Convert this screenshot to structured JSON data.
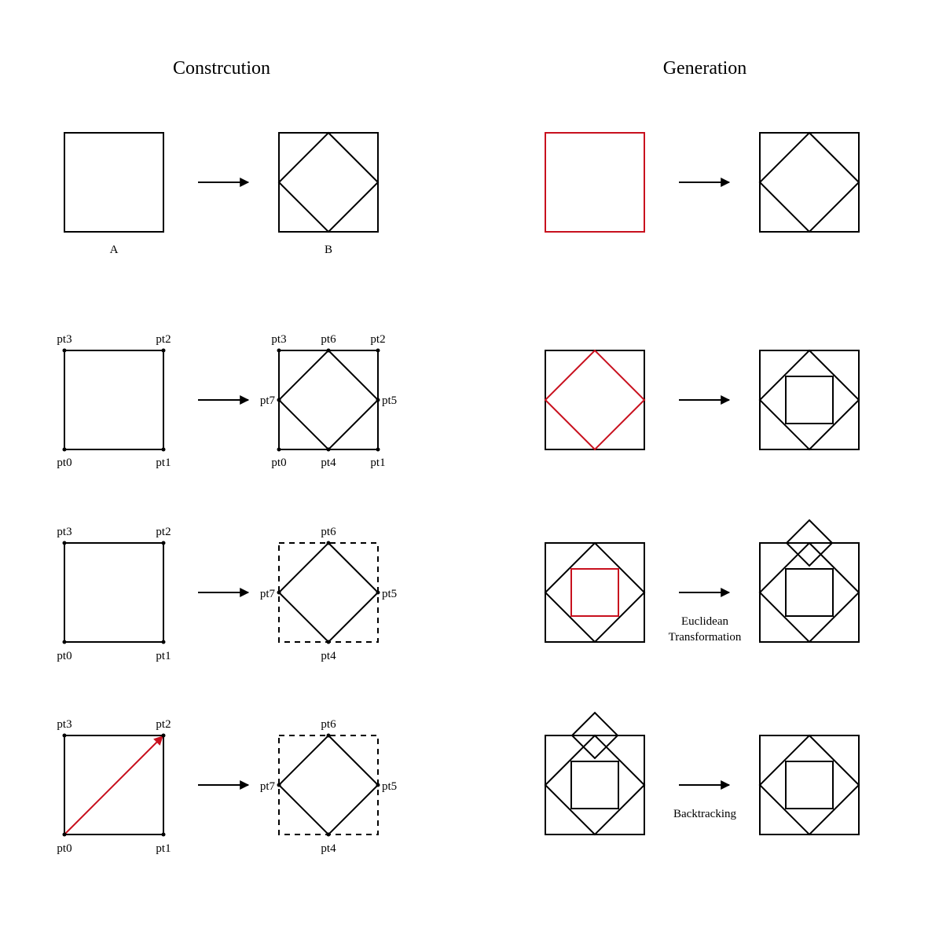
{
  "titles": {
    "construction": "Constrcution",
    "generation": "Generation"
  },
  "captions": {
    "a": "A",
    "b": "B",
    "euclidean_line1": "Euclidean",
    "euclidean_line2": "Transformation",
    "backtracking": "Backtracking"
  },
  "points": {
    "pt0": "pt0",
    "pt1": "pt1",
    "pt2": "pt2",
    "pt3": "pt3",
    "pt4": "pt4",
    "pt5": "pt5",
    "pt6": "pt6",
    "pt7": "pt7"
  },
  "colors": {
    "stroke": "#000000",
    "highlight": "#c8101e"
  }
}
